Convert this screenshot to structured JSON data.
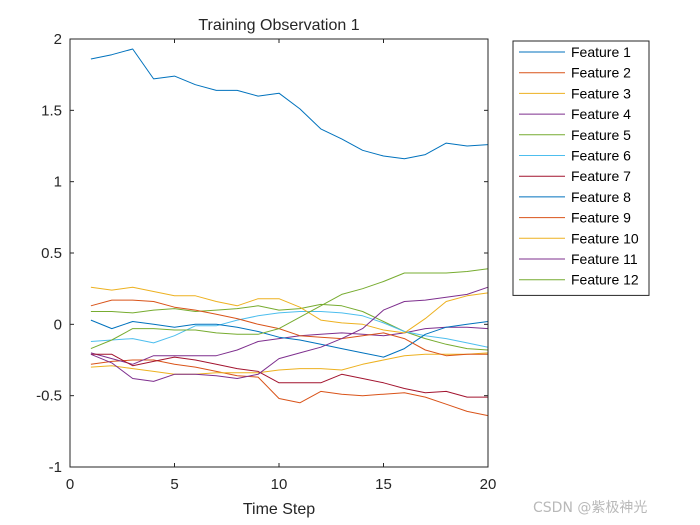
{
  "chart_data": {
    "type": "line",
    "title": "Training Observation 1",
    "xlabel": "Time Step",
    "ylabel": "",
    "xlim": [
      0,
      20
    ],
    "ylim": [
      -1,
      2
    ],
    "xticks": [
      0,
      5,
      10,
      15,
      20
    ],
    "yticks": [
      -1,
      -0.5,
      0,
      0.5,
      1,
      1.5,
      2
    ],
    "xtick_labels": [
      "0",
      "5",
      "10",
      "15",
      "20"
    ],
    "ytick_labels": [
      "-1",
      "-0.5",
      "0",
      "0.5",
      "1",
      "1.5",
      "2"
    ],
    "grid": false,
    "legend_position": "outside-right",
    "x": [
      1,
      2,
      3,
      4,
      5,
      6,
      7,
      8,
      9,
      10,
      11,
      12,
      13,
      14,
      15,
      16,
      17,
      18,
      19,
      20
    ],
    "series": [
      {
        "name": "Feature 1",
        "color": "#0072BD",
        "values": [
          1.86,
          1.89,
          1.93,
          1.72,
          1.74,
          1.68,
          1.64,
          1.64,
          1.6,
          1.62,
          1.51,
          1.37,
          1.3,
          1.22,
          1.18,
          1.16,
          1.19,
          1.27,
          1.25,
          1.26
        ]
      },
      {
        "name": "Feature 2",
        "color": "#D95319",
        "values": [
          -0.28,
          -0.26,
          -0.25,
          -0.25,
          -0.28,
          -0.3,
          -0.33,
          -0.36,
          -0.37,
          -0.52,
          -0.55,
          -0.47,
          -0.49,
          -0.5,
          -0.49,
          -0.48,
          -0.51,
          -0.56,
          -0.61,
          -0.64
        ]
      },
      {
        "name": "Feature 3",
        "color": "#EDB120",
        "values": [
          -0.3,
          -0.29,
          -0.31,
          -0.33,
          -0.35,
          -0.35,
          -0.34,
          -0.34,
          -0.34,
          -0.32,
          -0.31,
          -0.31,
          -0.32,
          -0.28,
          -0.25,
          -0.22,
          -0.21,
          -0.21,
          -0.21,
          -0.2
        ]
      },
      {
        "name": "Feature 4",
        "color": "#7E2F8E",
        "values": [
          -0.2,
          -0.24,
          -0.28,
          -0.22,
          -0.22,
          -0.22,
          -0.22,
          -0.18,
          -0.12,
          -0.1,
          -0.08,
          -0.07,
          -0.06,
          -0.07,
          -0.08,
          -0.06,
          -0.03,
          -0.02,
          -0.02,
          -0.03
        ]
      },
      {
        "name": "Feature 5",
        "color": "#77AC30",
        "values": [
          0.09,
          0.09,
          0.08,
          0.1,
          0.11,
          0.09,
          0.1,
          0.11,
          0.13,
          0.1,
          0.11,
          0.14,
          0.13,
          0.09,
          0.02,
          -0.05,
          -0.1,
          -0.14,
          -0.17,
          -0.18
        ]
      },
      {
        "name": "Feature 6",
        "color": "#4DBEEE",
        "values": [
          -0.12,
          -0.11,
          -0.1,
          -0.13,
          -0.08,
          -0.01,
          -0.01,
          0.03,
          0.06,
          0.08,
          0.09,
          0.09,
          0.08,
          0.06,
          0.01,
          -0.05,
          -0.08,
          -0.1,
          -0.13,
          -0.16
        ]
      },
      {
        "name": "Feature 7",
        "color": "#A2142F",
        "values": [
          -0.21,
          -0.21,
          -0.29,
          -0.26,
          -0.23,
          -0.25,
          -0.28,
          -0.31,
          -0.33,
          -0.41,
          -0.41,
          -0.41,
          -0.35,
          -0.38,
          -0.41,
          -0.45,
          -0.48,
          -0.47,
          -0.51,
          -0.51
        ]
      },
      {
        "name": "Feature 8",
        "color": "#0072BD",
        "values": [
          0.03,
          -0.03,
          0.02,
          0.0,
          -0.02,
          0.0,
          0.0,
          -0.02,
          -0.05,
          -0.09,
          -0.11,
          -0.14,
          -0.17,
          -0.2,
          -0.23,
          -0.17,
          -0.07,
          -0.02,
          0.0,
          0.02
        ]
      },
      {
        "name": "Feature 9",
        "color": "#D95319",
        "values": [
          0.13,
          0.17,
          0.17,
          0.16,
          0.12,
          0.1,
          0.07,
          0.04,
          0.0,
          -0.03,
          -0.08,
          -0.09,
          -0.1,
          -0.08,
          -0.06,
          -0.1,
          -0.18,
          -0.22,
          -0.21,
          -0.21
        ]
      },
      {
        "name": "Feature 10",
        "color": "#EDB120",
        "values": [
          0.26,
          0.24,
          0.26,
          0.23,
          0.2,
          0.2,
          0.16,
          0.13,
          0.18,
          0.18,
          0.12,
          0.03,
          0.01,
          0.0,
          -0.04,
          -0.06,
          0.04,
          0.16,
          0.2,
          0.22
        ]
      },
      {
        "name": "Feature 11",
        "color": "#7E2F8E",
        "values": [
          -0.21,
          -0.27,
          -0.38,
          -0.4,
          -0.35,
          -0.35,
          -0.36,
          -0.38,
          -0.35,
          -0.24,
          -0.2,
          -0.16,
          -0.1,
          -0.03,
          0.1,
          0.16,
          0.17,
          0.19,
          0.21,
          0.26
        ]
      },
      {
        "name": "Feature 12",
        "color": "#77AC30",
        "values": [
          -0.17,
          -0.11,
          -0.03,
          -0.03,
          -0.04,
          -0.04,
          -0.06,
          -0.07,
          -0.07,
          -0.03,
          0.05,
          0.13,
          0.21,
          0.25,
          0.3,
          0.36,
          0.36,
          0.36,
          0.37,
          0.39
        ]
      }
    ]
  },
  "watermark": "CSDN @紫极神光"
}
